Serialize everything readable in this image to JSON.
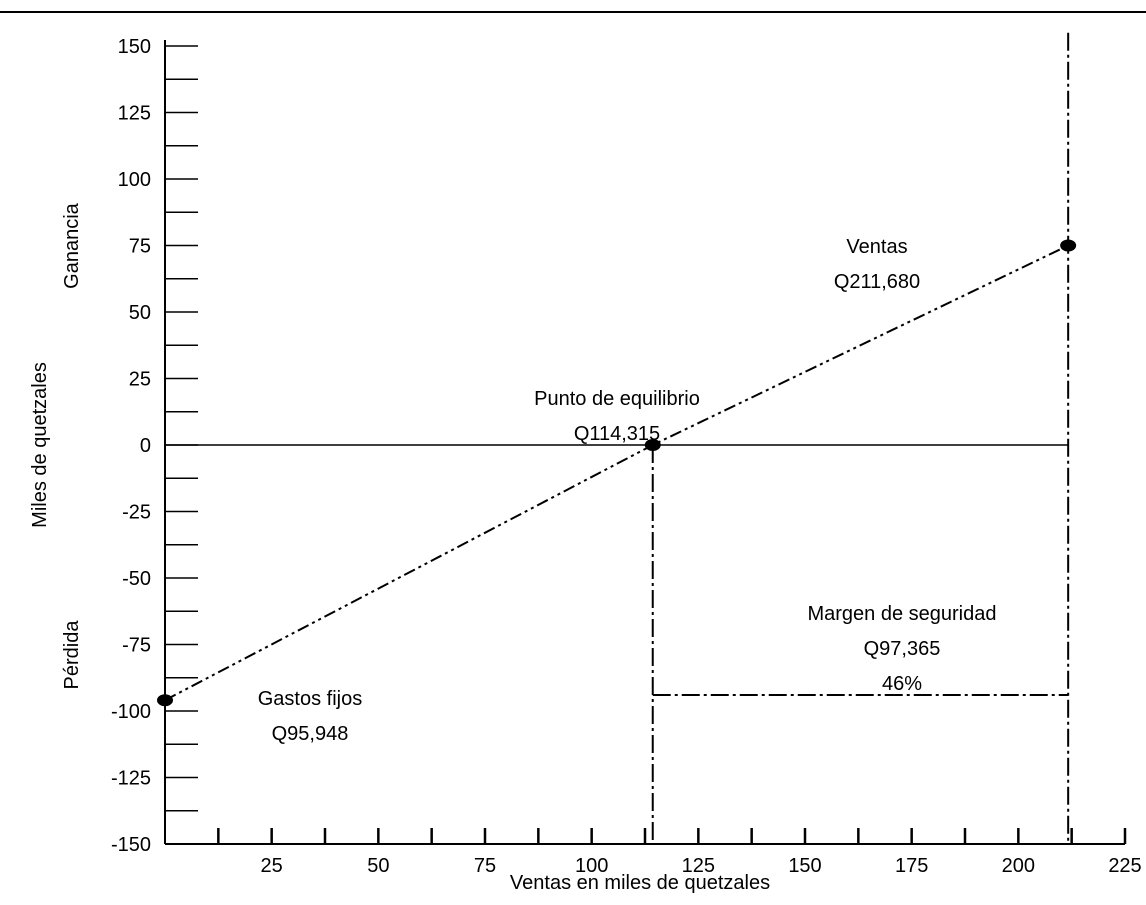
{
  "chart_data": {
    "type": "line",
    "title": "",
    "xlabel": "Ventas en miles de quetzales",
    "ylabel": "Miles de quetzales",
    "upper_region_label": "Ganancia",
    "lower_region_label": "Pérdida",
    "xlim": [
      0,
      225
    ],
    "ylim": [
      -150,
      150
    ],
    "x_ticks": [
      25,
      50,
      75,
      100,
      125,
      150,
      175,
      200,
      225
    ],
    "x_tick_labels": [
      "25",
      "50",
      "75",
      "100",
      "125",
      "150",
      "175",
      "200",
      "225"
    ],
    "y_ticks": [
      150,
      125,
      100,
      75,
      50,
      25,
      0,
      -25,
      -50,
      -75,
      -100,
      -125,
      -150
    ],
    "y_tick_labels": [
      "150",
      "125",
      "100",
      "75",
      "50",
      "25",
      "0",
      "-25",
      "-50",
      "-75",
      "-100",
      "-125",
      "-150"
    ],
    "series": [
      {
        "line_style": "dash-dot-dot",
        "points": [
          {
            "x": 0,
            "y": -95.948
          },
          {
            "x": 114.315,
            "y": 0
          },
          {
            "x": 211.68,
            "y": 75
          }
        ]
      }
    ],
    "reference_lines": [
      {
        "kind": "vertical",
        "x": 114.315,
        "from_y": -150,
        "to_y": 0,
        "style": "dash-dot"
      },
      {
        "kind": "vertical",
        "x": 211.68,
        "from_y": -150,
        "to_y": 155,
        "style": "dash-dot"
      },
      {
        "kind": "horizontal",
        "y": -94,
        "from_x": 114.315,
        "to_x": 211.68,
        "style": "dash-dot"
      },
      {
        "kind": "horizontal",
        "y": 0,
        "from_x": 0,
        "to_x": 211.68,
        "style": "solid"
      }
    ],
    "annotations": [
      {
        "name": "ventas",
        "lines": [
          "Ventas",
          "Q211,680"
        ]
      },
      {
        "name": "punto-equilibrio",
        "lines": [
          "Punto de equilibrio",
          "Q114,315"
        ]
      },
      {
        "name": "margen-seguridad",
        "lines": [
          "Margen de seguridad",
          "Q97,365",
          "46%"
        ]
      },
      {
        "name": "gastos-fijos",
        "lines": [
          "Gastos fijos",
          "Q95,948"
        ]
      }
    ]
  }
}
